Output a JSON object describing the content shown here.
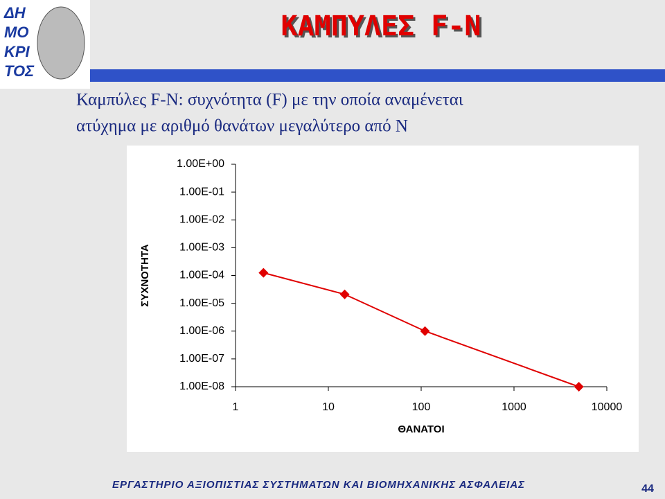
{
  "slide": {
    "title": "ΚΑΜΠΥΛΕΣ  F-N",
    "subtitle_lines": [
      "Καμπύλες F-N: συχνότητα (F) με την οποία αναμένεται",
      "ατύχημα με αριθμό θανάτων μεγαλύτερο από Ν"
    ],
    "logo_lines": [
      "ΔΗ",
      "ΜΟ",
      "ΚΡΙ",
      "ΤΟΣ"
    ],
    "footer": "ΕΡΓΑΣΤΗΡΙΟ ΑΞΙΟΠΙΣΤΙΑΣ ΣΥΣΤΗΜΑΤΩΝ ΚΑΙ ΒΙΟΜΗΧΑΝΙΚΗΣ ΑΣΦΑΛΕΙΑΣ",
    "page_number": "44"
  },
  "chart_data": {
    "type": "line",
    "x_label": "ΘΑΝΑΤΟΙ",
    "y_label": "ΣΥΧΝΟΤΗΤΑ",
    "x": [
      2,
      15,
      110,
      5000
    ],
    "values": [
      0.000125,
      2.1e-05,
      1e-06,
      1e-08
    ],
    "color": "#e00000",
    "log_x": true,
    "log_y": true,
    "grid": false,
    "xlim": [
      1,
      10000
    ],
    "xticks": [
      1,
      10,
      100,
      1000,
      10000
    ],
    "ylim": [
      1e-08,
      1
    ],
    "yticks": [
      {
        "value": 1,
        "label": "1.00E+00"
      },
      {
        "value": 0.1,
        "label": "1.00E-01"
      },
      {
        "value": 0.01,
        "label": "1.00E-02"
      },
      {
        "value": 0.001,
        "label": "1.00E-03"
      },
      {
        "value": 0.0001,
        "label": "1.00E-04"
      },
      {
        "value": 1e-05,
        "label": "1.00E-05"
      },
      {
        "value": 1e-06,
        "label": "1.00E-06"
      },
      {
        "value": 1e-07,
        "label": "1.00E-07"
      },
      {
        "value": 1e-08,
        "label": "1.00E-08"
      }
    ]
  }
}
